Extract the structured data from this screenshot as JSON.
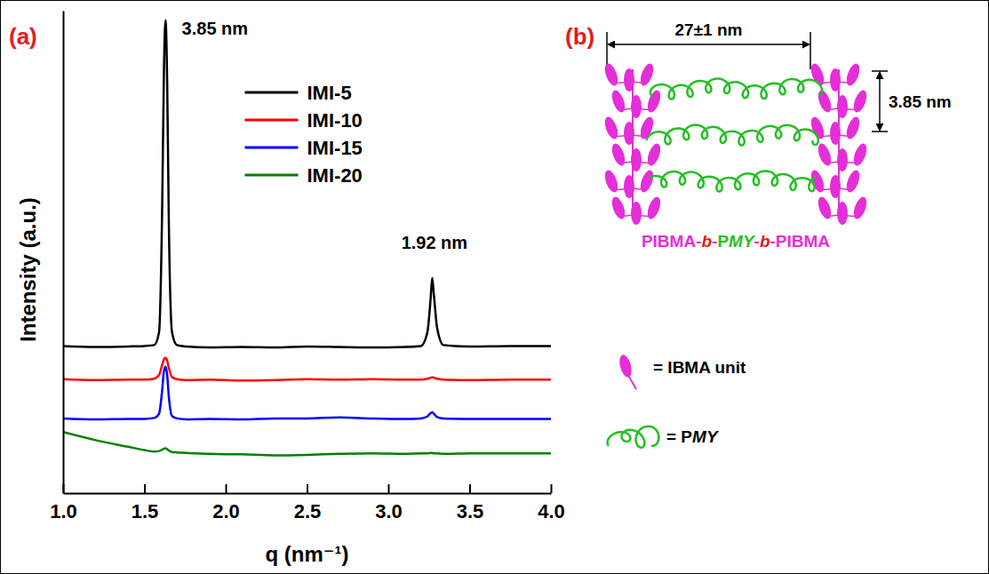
{
  "chart_data": {
    "type": "line",
    "panel_label": "(a)",
    "x_label": "q (nm⁻¹)",
    "y_label": "Intensity (a.u.)",
    "x": [
      1,
      1.2,
      1.4,
      1.5,
      1.56,
      1.59,
      1.61,
      1.62,
      1.63,
      1.64,
      1.65,
      1.67,
      1.7,
      1.76,
      1.9,
      2.1,
      2.3,
      2.5,
      2.7,
      2.9,
      3.1,
      3.2,
      3.24,
      3.26,
      3.27,
      3.28,
      3.3,
      3.34,
      3.5,
      3.75,
      4
    ],
    "series": [
      {
        "name": "IMI-5",
        "color": "#000000",
        "values": [
          31.1,
          30.9,
          31.0,
          31.1,
          31.3,
          34,
          62,
          89,
          100,
          87,
          58,
          34,
          31.3,
          31.0,
          30.8,
          30.9,
          30.8,
          31.0,
          30.9,
          30.8,
          30.9,
          31.1,
          34,
          41,
          45.5,
          42,
          35,
          31.3,
          31.0,
          31.1,
          31.1
        ]
      },
      {
        "name": "IMI-10",
        "color": "#ff0000",
        "values": [
          24.1,
          23.9,
          24.0,
          24.0,
          24.2,
          25,
          27.2,
          28.3,
          28.6,
          28,
          26.5,
          24.5,
          24.1,
          23.9,
          24.0,
          23.8,
          23.9,
          24.1,
          24.0,
          24.1,
          24.0,
          24.0,
          24.2,
          24.4,
          24.5,
          24.4,
          24.2,
          24.0,
          23.9,
          24.0,
          24.0
        ]
      },
      {
        "name": "IMI-15",
        "color": "#0000ff",
        "values": [
          15.8,
          15.6,
          15.7,
          15.7,
          15.9,
          16.8,
          22,
          25.8,
          26.7,
          25,
          20.5,
          16.3,
          15.8,
          15.6,
          15.7,
          15.6,
          15.8,
          15.8,
          16.0,
          15.8,
          15.7,
          15.8,
          16.2,
          16.9,
          17.1,
          16.8,
          16.1,
          15.8,
          15.7,
          15.7,
          15.7
        ]
      },
      {
        "name": "IMI-20",
        "color": "#008000",
        "values": [
          12.9,
          11.2,
          9.8,
          9.1,
          8.8,
          8.9,
          9.2,
          9.4,
          9.5,
          9.3,
          9.0,
          8.7,
          8.6,
          8.5,
          8.3,
          8.2,
          8.0,
          8.1,
          8.3,
          8.4,
          8.3,
          8.4,
          8.4,
          8.5,
          8.5,
          8.4,
          8.4,
          8.3,
          8.4,
          8.4,
          8.4
        ]
      }
    ],
    "xlim": [
      1,
      4
    ],
    "xticks": [
      {
        "value": 1,
        "label": "1.0"
      },
      1.5,
      {
        "value": 2,
        "label": "2.0"
      },
      2.5,
      {
        "value": 3,
        "label": "3.0"
      },
      3.5,
      {
        "value": 4,
        "label": "4.0"
      }
    ],
    "ylim": [
      0,
      102
    ],
    "tick_labels": "x",
    "legend": "upper center",
    "annotations": [
      {
        "text": "3.85 nm",
        "x": 1.73,
        "y": 97
      },
      {
        "text": "1.92 nm",
        "x": 3.08,
        "y": 51.6
      }
    ]
  },
  "diagram": {
    "panel_label": "(b)",
    "length_label": "27±1 nm",
    "spacing_label": "3.85 nm",
    "polymer_name": "PIBMA-b-PMY-b-PIBMA",
    "key": [
      "= IBMA unit",
      "= PMY"
    ]
  }
}
